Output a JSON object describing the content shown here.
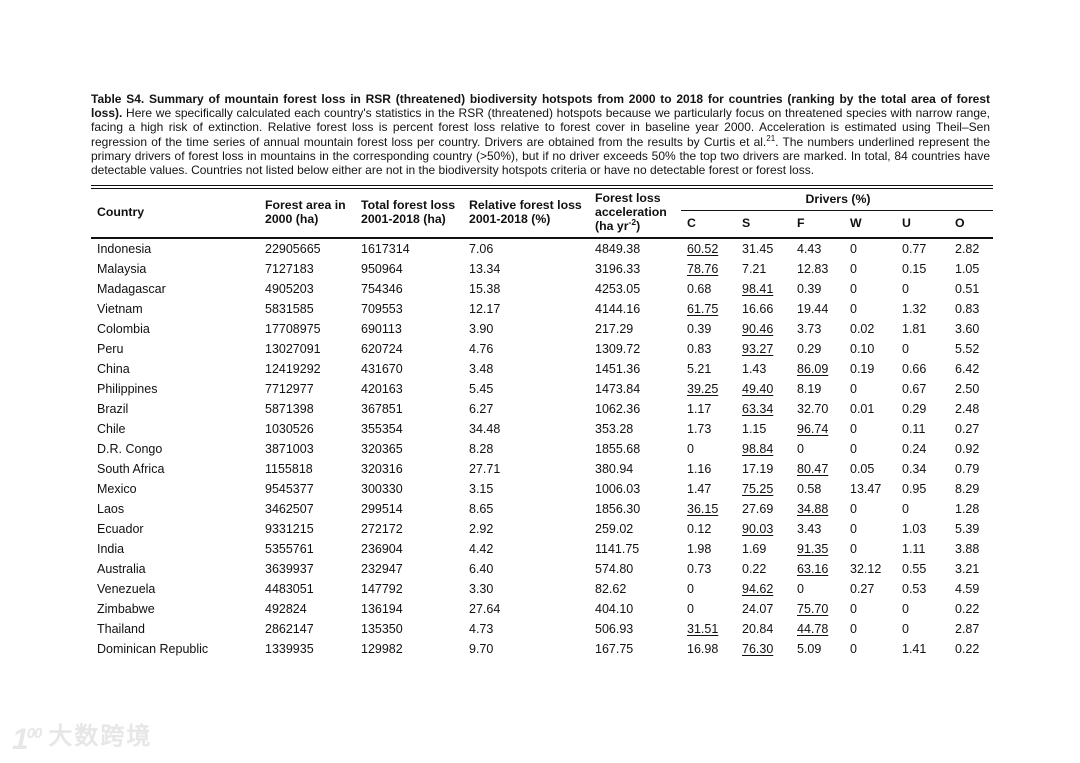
{
  "caption": {
    "bold_part": "Table S4. Summary of mountain forest loss in RSR (threatened) biodiversity hotspots from 2000 to 2018 for countries (ranking by the total area of forest loss).",
    "text_part_1": " Here we specifically calculated each country's statistics in the RSR (threatened) hotspots because we particularly focus on threatened species with narrow range, facing a high risk of extinction. Relative forest loss is percent forest loss relative to forest cover in baseline year 2000. Acceleration is estimated using Theil–Sen regression of the time series of annual mountain forest loss per country. Drivers are obtained from the results by Curtis et al.",
    "citation_sup": "21",
    "text_part_2": ". The numbers underlined represent the primary drivers of forest loss in mountains in the corresponding country (>50%), but if no driver exceeds 50% the top two drivers are marked. In total, 84 countries have detectable values. Countries not listed below either are not in the biodiversity hotspots criteria or have no detectable forest or forest loss."
  },
  "table": {
    "headers": {
      "country": "Country",
      "forest_area": "Forest area in 2000 (ha)",
      "total_loss": "Total forest loss 2001-2018 (ha)",
      "relative_loss": "Relative forest loss 2001-2018 (%)",
      "acceleration_label": "Forest loss acceleration ",
      "acceleration_unit_pre": "(ha yr",
      "acceleration_unit_sup": "-2",
      "acceleration_unit_post": ")",
      "drivers_group": "Drivers (%)",
      "driver_cols": [
        "C",
        "S",
        "F",
        "W",
        "U",
        "O"
      ]
    },
    "rows": [
      {
        "country": "Indonesia",
        "forest_area": "22905665",
        "total_loss": "1617314",
        "relative_loss": "7.06",
        "acceleration": "4849.38",
        "drivers": [
          "60.52",
          "31.45",
          "4.43",
          "0",
          "0.77",
          "2.82"
        ],
        "underlined": [
          0
        ]
      },
      {
        "country": "Malaysia",
        "forest_area": "7127183",
        "total_loss": "950964",
        "relative_loss": "13.34",
        "acceleration": "3196.33",
        "drivers": [
          "78.76",
          "7.21",
          "12.83",
          "0",
          "0.15",
          "1.05"
        ],
        "underlined": [
          0
        ]
      },
      {
        "country": "Madagascar",
        "forest_area": "4905203",
        "total_loss": "754346",
        "relative_loss": "15.38",
        "acceleration": "4253.05",
        "drivers": [
          "0.68",
          "98.41",
          "0.39",
          "0",
          "0",
          "0.51"
        ],
        "underlined": [
          1
        ]
      },
      {
        "country": "Vietnam",
        "forest_area": "5831585",
        "total_loss": "709553",
        "relative_loss": "12.17",
        "acceleration": "4144.16",
        "drivers": [
          "61.75",
          "16.66",
          "19.44",
          "0",
          "1.32",
          "0.83"
        ],
        "underlined": [
          0
        ]
      },
      {
        "country": "Colombia",
        "forest_area": "17708975",
        "total_loss": "690113",
        "relative_loss": "3.90",
        "acceleration": "217.29",
        "drivers": [
          "0.39",
          "90.46",
          "3.73",
          "0.02",
          "1.81",
          "3.60"
        ],
        "underlined": [
          1
        ]
      },
      {
        "country": "Peru",
        "forest_area": "13027091",
        "total_loss": "620724",
        "relative_loss": "4.76",
        "acceleration": "1309.72",
        "drivers": [
          "0.83",
          "93.27",
          "0.29",
          "0.10",
          "0",
          "5.52"
        ],
        "underlined": [
          1
        ]
      },
      {
        "country": "China",
        "forest_area": "12419292",
        "total_loss": "431670",
        "relative_loss": "3.48",
        "acceleration": "1451.36",
        "drivers": [
          "5.21",
          "1.43",
          "86.09",
          "0.19",
          "0.66",
          "6.42"
        ],
        "underlined": [
          2
        ]
      },
      {
        "country": "Philippines",
        "forest_area": "7712977",
        "total_loss": "420163",
        "relative_loss": "5.45",
        "acceleration": "1473.84",
        "drivers": [
          "39.25",
          "49.40",
          "8.19",
          "0",
          "0.67",
          "2.50"
        ],
        "underlined": [
          0,
          1
        ]
      },
      {
        "country": "Brazil",
        "forest_area": "5871398",
        "total_loss": "367851",
        "relative_loss": "6.27",
        "acceleration": "1062.36",
        "drivers": [
          "1.17",
          "63.34",
          "32.70",
          "0.01",
          "0.29",
          "2.48"
        ],
        "underlined": [
          1
        ]
      },
      {
        "country": "Chile",
        "forest_area": "1030526",
        "total_loss": "355354",
        "relative_loss": "34.48",
        "acceleration": "353.28",
        "drivers": [
          "1.73",
          "1.15",
          "96.74",
          "0",
          "0.11",
          "0.27"
        ],
        "underlined": [
          2
        ]
      },
      {
        "country": "D.R. Congo",
        "forest_area": "3871003",
        "total_loss": "320365",
        "relative_loss": "8.28",
        "acceleration": "1855.68",
        "drivers": [
          "0",
          "98.84",
          "0",
          "0",
          "0.24",
          "0.92"
        ],
        "underlined": [
          1
        ]
      },
      {
        "country": "South Africa",
        "forest_area": "1155818",
        "total_loss": "320316",
        "relative_loss": "27.71",
        "acceleration": "380.94",
        "drivers": [
          "1.16",
          "17.19",
          "80.47",
          "0.05",
          "0.34",
          "0.79"
        ],
        "underlined": [
          2
        ]
      },
      {
        "country": "Mexico",
        "forest_area": "9545377",
        "total_loss": "300330",
        "relative_loss": "3.15",
        "acceleration": "1006.03",
        "drivers": [
          "1.47",
          "75.25",
          "0.58",
          "13.47",
          "0.95",
          "8.29"
        ],
        "underlined": [
          1
        ]
      },
      {
        "country": "Laos",
        "forest_area": "3462507",
        "total_loss": "299514",
        "relative_loss": "8.65",
        "acceleration": "1856.30",
        "drivers": [
          "36.15",
          "27.69",
          "34.88",
          "0",
          "0",
          "1.28"
        ],
        "underlined": [
          0,
          2
        ]
      },
      {
        "country": "Ecuador",
        "forest_area": "9331215",
        "total_loss": "272172",
        "relative_loss": "2.92",
        "acceleration": "259.02",
        "drivers": [
          "0.12",
          "90.03",
          "3.43",
          "0",
          "1.03",
          "5.39"
        ],
        "underlined": [
          1
        ]
      },
      {
        "country": "India",
        "forest_area": "5355761",
        "total_loss": "236904",
        "relative_loss": "4.42",
        "acceleration": "1141.75",
        "drivers": [
          "1.98",
          "1.69",
          "91.35",
          "0",
          "1.11",
          "3.88"
        ],
        "underlined": [
          2
        ]
      },
      {
        "country": "Australia",
        "forest_area": "3639937",
        "total_loss": "232947",
        "relative_loss": "6.40",
        "acceleration": "574.80",
        "drivers": [
          "0.73",
          "0.22",
          "63.16",
          "32.12",
          "0.55",
          "3.21"
        ],
        "underlined": [
          2
        ]
      },
      {
        "country": "Venezuela",
        "forest_area": "4483051",
        "total_loss": "147792",
        "relative_loss": "3.30",
        "acceleration": "82.62",
        "drivers": [
          "0",
          "94.62",
          "0",
          "0.27",
          "0.53",
          "4.59"
        ],
        "underlined": [
          1
        ]
      },
      {
        "country": "Zimbabwe",
        "forest_area": "492824",
        "total_loss": "136194",
        "relative_loss": "27.64",
        "acceleration": "404.10",
        "drivers": [
          "0",
          "24.07",
          "75.70",
          "0",
          "0",
          "0.22"
        ],
        "underlined": [
          2
        ]
      },
      {
        "country": "Thailand",
        "forest_area": "2862147",
        "total_loss": "135350",
        "relative_loss": "4.73",
        "acceleration": "506.93",
        "drivers": [
          "31.51",
          "20.84",
          "44.78",
          "0",
          "0",
          "2.87"
        ],
        "underlined": [
          0,
          2
        ]
      },
      {
        "country": "Dominican Republic",
        "forest_area": "1339935",
        "total_loss": "129982",
        "relative_loss": "9.70",
        "acceleration": "167.75",
        "drivers": [
          "16.98",
          "76.30",
          "5.09",
          "0",
          "1.41",
          "0.22"
        ],
        "underlined": [
          1
        ]
      }
    ]
  },
  "watermark": {
    "logo_one": "1",
    "logo_circles": "00",
    "text": "大数跨境"
  }
}
